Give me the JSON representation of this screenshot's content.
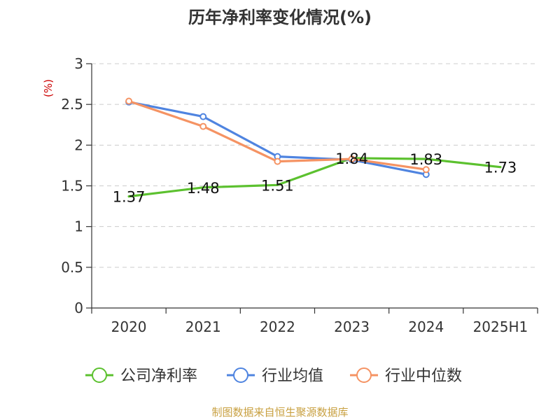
{
  "chart_data": {
    "type": "line",
    "title": "历年净利率变化情况(%)",
    "ylabel": "(%)",
    "xlabel": "",
    "categories": [
      "2020",
      "2021",
      "2022",
      "2023",
      "2024",
      "2025H1"
    ],
    "yticks": [
      "0",
      "0.5",
      "1",
      "1.5",
      "2",
      "2.5",
      "3"
    ],
    "ylim": [
      0,
      3
    ],
    "grid": true,
    "legend_position": "bottom",
    "series": [
      {
        "name": "公司净利率",
        "color": "#5cc12f",
        "values": [
          1.37,
          1.48,
          1.51,
          1.84,
          1.83,
          1.73
        ],
        "labels": [
          "1.37",
          "1.48",
          "1.51",
          "1.84",
          "1.83",
          "1.73"
        ]
      },
      {
        "name": "行业均值",
        "color": "#4f84e0",
        "values": [
          2.53,
          2.35,
          1.86,
          1.82,
          1.64,
          null
        ]
      },
      {
        "name": "行业中位数",
        "color": "#f59363",
        "values": [
          2.54,
          2.23,
          1.8,
          1.83,
          1.7,
          null
        ]
      }
    ],
    "source": "制图数据来自恒生聚源数据库"
  }
}
